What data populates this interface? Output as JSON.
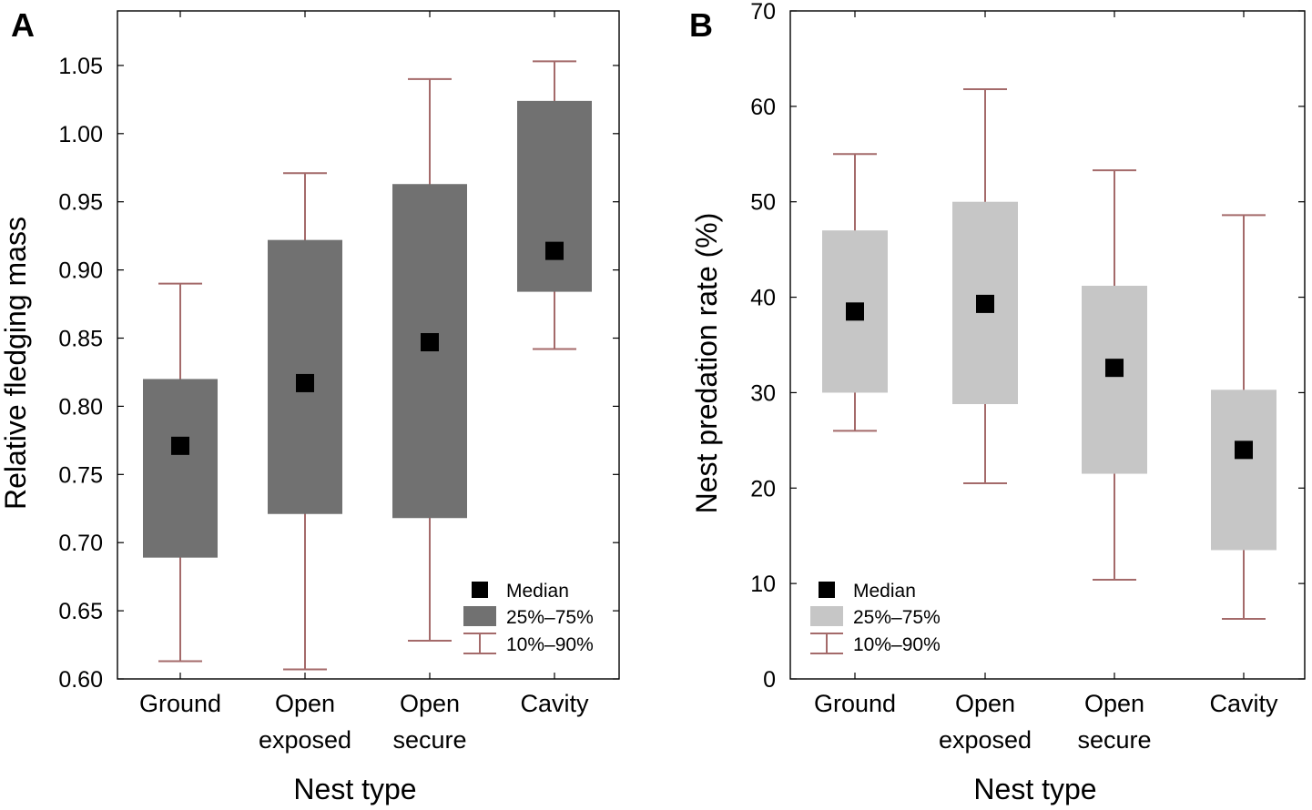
{
  "chart_data": [
    {
      "type": "box",
      "panel_label": "A",
      "categories": [
        "Ground",
        "Open exposed",
        "Open secure",
        "Cavity"
      ],
      "category_lines": [
        [
          "Ground"
        ],
        [
          "Open",
          "exposed"
        ],
        [
          "Open",
          "secure"
        ],
        [
          "Cavity"
        ]
      ],
      "xlabel": "Nest type",
      "ylabel": "Relative fledging mass",
      "ylim": [
        0.6,
        1.09
      ],
      "yticks": [
        0.6,
        0.65,
        0.7,
        0.75,
        0.8,
        0.85,
        0.9,
        0.95,
        1.0,
        1.05
      ],
      "ytick_labels": [
        "0.60",
        "0.65",
        "0.70",
        "0.75",
        "0.80",
        "0.85",
        "0.90",
        "0.95",
        "1.00",
        "1.05"
      ],
      "series": [
        {
          "name": "Median",
          "values": [
            0.771,
            0.817,
            0.847,
            0.914
          ]
        },
        {
          "name": "25%–75%",
          "low": [
            0.689,
            0.721,
            0.718,
            0.884
          ],
          "high": [
            0.82,
            0.922,
            0.963,
            1.024
          ]
        },
        {
          "name": "10%–90%",
          "low": [
            0.613,
            0.607,
            0.628,
            0.842
          ],
          "high": [
            0.89,
            0.971,
            1.04,
            1.053
          ]
        }
      ],
      "legend": [
        "Median",
        "25%–75%",
        "10%–90%"
      ],
      "legend_position": "bottom-right",
      "colors": {
        "box": "#717171",
        "whisker": "#a46a6a",
        "median": "#000000"
      },
      "grid": false
    },
    {
      "type": "box",
      "panel_label": "B",
      "categories": [
        "Ground",
        "Open exposed",
        "Open secure",
        "Cavity"
      ],
      "category_lines": [
        [
          "Ground"
        ],
        [
          "Open",
          "exposed"
        ],
        [
          "Open",
          "secure"
        ],
        [
          "Cavity"
        ]
      ],
      "xlabel": "Nest type",
      "ylabel": "Nest predation rate (%)",
      "ylim": [
        0,
        70
      ],
      "yticks": [
        0,
        10,
        20,
        30,
        40,
        50,
        60,
        70
      ],
      "ytick_labels": [
        "0",
        "10",
        "20",
        "30",
        "40",
        "50",
        "60",
        "70"
      ],
      "series": [
        {
          "name": "Median",
          "values": [
            38.5,
            39.3,
            32.6,
            24.0
          ]
        },
        {
          "name": "25%–75%",
          "low": [
            30.0,
            28.8,
            21.5,
            13.5
          ],
          "high": [
            47.0,
            50.0,
            41.2,
            30.3
          ]
        },
        {
          "name": "10%–90%",
          "low": [
            26.0,
            20.5,
            10.4,
            6.3
          ],
          "high": [
            55.0,
            61.8,
            53.3,
            48.6
          ]
        }
      ],
      "legend": [
        "Median",
        "25%–75%",
        "10%–90%"
      ],
      "legend_position": "bottom-left",
      "colors": {
        "box": "#c6c6c6",
        "whisker": "#a46a6a",
        "median": "#000000"
      },
      "grid": false
    }
  ]
}
